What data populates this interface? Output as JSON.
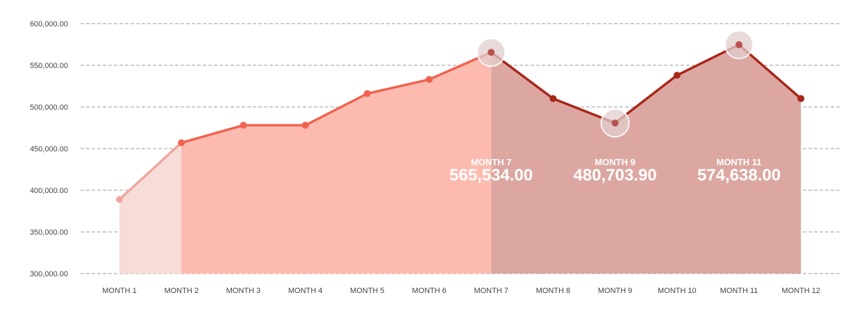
{
  "chart_data": {
    "type": "area",
    "categories": [
      "MONTH 1",
      "MONTH 2",
      "MONTH 3",
      "MONTH 4",
      "MONTH 5",
      "MONTH 6",
      "MONTH 7",
      "MONTH 8",
      "MONTH 9",
      "MONTH 10",
      "MONTH 11",
      "MONTH 12"
    ],
    "values": [
      389000,
      457000,
      478000,
      478000,
      516000,
      533000,
      565534.0,
      510000,
      480703.9,
      538000,
      574638.0,
      510000
    ],
    "y_ticks": [
      "300,000.00",
      "350,000.00",
      "400,000.00",
      "450,000.00",
      "500,000.00",
      "550,000.00",
      "600,000.00"
    ],
    "ylim": [
      300000,
      600000
    ],
    "grid": true,
    "segments": [
      {
        "from": 0,
        "to": 1,
        "line_color": "#eea79e",
        "fill_color": "#f7dcd8"
      },
      {
        "from": 1,
        "to": 6,
        "line_color": "#f26250",
        "fill_color": "#fdbbb0"
      },
      {
        "from": 6,
        "to": 11,
        "line_color": "#a8261a",
        "fill_color": "#dca7a1"
      }
    ],
    "highlights": [
      {
        "index": 6,
        "month": "MONTH 7",
        "value": "565,534.00"
      },
      {
        "index": 8,
        "month": "MONTH 9",
        "value": "480,703.90"
      },
      {
        "index": 10,
        "month": "MONTH 11",
        "value": "574,638.00"
      }
    ]
  }
}
